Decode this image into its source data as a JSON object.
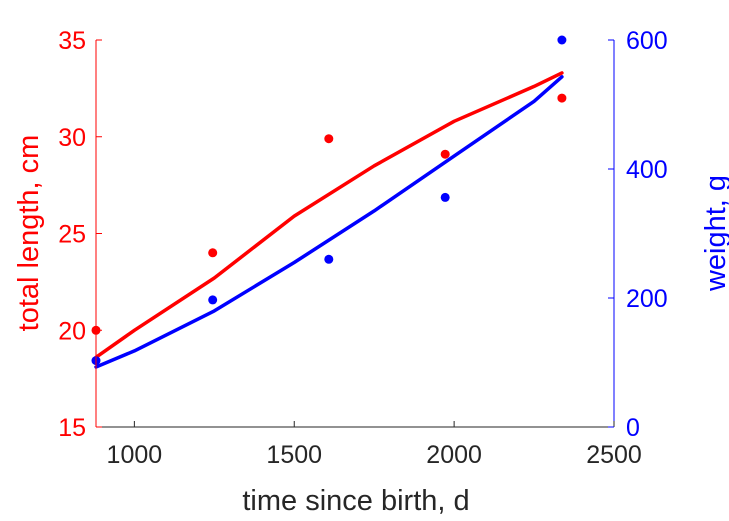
{
  "chart_data": {
    "type": "line",
    "title": "",
    "xlabel": "time since birth, d",
    "xlim": [
      880,
      2500
    ],
    "xticks": [
      1000,
      1500,
      2000,
      2500
    ],
    "left_axis": {
      "label": "total length, cm",
      "color": "#ff0000",
      "ylim": [
        15,
        35
      ],
      "ticks": [
        15,
        20,
        25,
        30,
        35
      ]
    },
    "right_axis": {
      "label": "weight, g",
      "color": "#0000ff",
      "ylim": [
        0,
        600
      ],
      "ticks": [
        0,
        200,
        400,
        600
      ]
    },
    "grid": false,
    "series": [
      {
        "axis": "left",
        "kind": "points",
        "color": "#ff0000",
        "x": [
          880,
          1245,
          1608,
          1972,
          2337
        ],
        "y": [
          20.0,
          24.0,
          29.9,
          29.1,
          32.0
        ]
      },
      {
        "axis": "left",
        "kind": "fit-line",
        "color": "#ff0000",
        "x": [
          880,
          1000,
          1250,
          1500,
          1750,
          2000,
          2250,
          2337
        ],
        "y": [
          18.6,
          20.0,
          22.7,
          25.9,
          28.5,
          30.8,
          32.6,
          33.3
        ]
      },
      {
        "axis": "right",
        "kind": "points",
        "color": "#0000ff",
        "x": [
          880,
          1245,
          1608,
          1972,
          2337
        ],
        "y": [
          103,
          197,
          260,
          356,
          600
        ]
      },
      {
        "axis": "right",
        "kind": "fit-line",
        "color": "#0000ff",
        "x": [
          880,
          1000,
          1250,
          1500,
          1750,
          2000,
          2250,
          2337
        ],
        "y": [
          93,
          118,
          180,
          255,
          335,
          420,
          505,
          543
        ]
      }
    ]
  }
}
